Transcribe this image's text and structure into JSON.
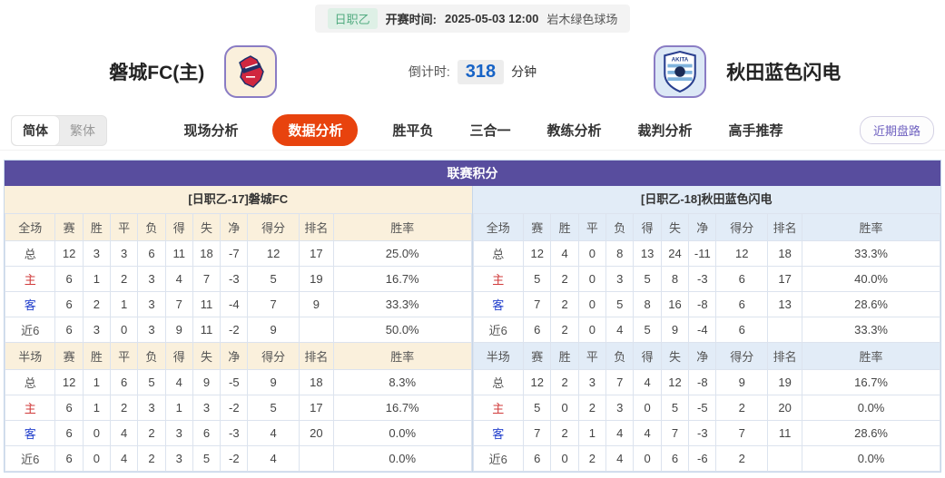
{
  "colors": {
    "purple_header": "#584d9e",
    "home_theme_bg": "#faf0dc",
    "away_theme_bg": "#e2ecf7",
    "active_tab": "#e8430e",
    "badge_bg": "#def0e6",
    "badge_text": "#52ab80",
    "countdown_blue": "#1763c6",
    "home_row_red": "#d03a3a",
    "away_row_blue": "#2340cc",
    "panel_border": "#c7d7ea",
    "cell_border": "#dce3ee",
    "logo_border": "#8a7cc4",
    "recent_button_text": "#6f61c0"
  },
  "top_bar": {
    "league_badge": "日职乙",
    "kickoff_label": "开赛时间:",
    "kickoff_time": "2025-05-03 12:00",
    "venue": "岩木绿色球场"
  },
  "match_header": {
    "home_team": "磐城FC(主)",
    "away_team": "秋田蓝色闪电",
    "home_logo_icon": "iwaki-fc-crest",
    "away_logo_icon": "blaublitz-akita-crest",
    "away_logo_text": "AKITA",
    "countdown_label": "倒计时:",
    "countdown_value": "318",
    "countdown_unit": "分钟"
  },
  "nav": {
    "lang": [
      {
        "id": "simplified",
        "label": "简体",
        "active": true
      },
      {
        "id": "traditional",
        "label": "繁体",
        "active": false
      }
    ],
    "tabs": [
      {
        "id": "live-analysis",
        "label": "现场分析",
        "active": false
      },
      {
        "id": "data-analysis",
        "label": "数据分析",
        "active": true
      },
      {
        "id": "win-draw-lose",
        "label": "胜平负",
        "active": false
      },
      {
        "id": "three-in-one",
        "label": "三合一",
        "active": false
      },
      {
        "id": "coach-analysis",
        "label": "教练分析",
        "active": false
      },
      {
        "id": "referee-analysis",
        "label": "裁判分析",
        "active": false
      },
      {
        "id": "expert-picks",
        "label": "高手推荐",
        "active": false
      }
    ],
    "recent_button": "近期盘路"
  },
  "panel": {
    "title": "联赛积分",
    "col_widths": [
      "10.8%",
      "5.9%",
      "5.9%",
      "5.9%",
      "5.9%",
      "5.9%",
      "5.9%",
      "5.9%",
      "11%",
      "7.4%",
      "29.5%"
    ],
    "tables": [
      {
        "team_title": "[日职乙-17]磐城FC",
        "theme": "cream",
        "sections": [
          {
            "header": [
              "全场",
              "赛",
              "胜",
              "平",
              "负",
              "得",
              "失",
              "净",
              "得分",
              "排名",
              "胜率"
            ],
            "rows": [
              {
                "label": "总",
                "type": "total",
                "cells": [
                  "12",
                  "3",
                  "3",
                  "6",
                  "11",
                  "18",
                  "-7",
                  "12",
                  "17",
                  "25.0%"
                ]
              },
              {
                "label": "主",
                "type": "home",
                "cells": [
                  "6",
                  "1",
                  "2",
                  "3",
                  "4",
                  "7",
                  "-3",
                  "5",
                  "19",
                  "16.7%"
                ]
              },
              {
                "label": "客",
                "type": "away",
                "cells": [
                  "6",
                  "2",
                  "1",
                  "3",
                  "7",
                  "11",
                  "-4",
                  "7",
                  "9",
                  "33.3%"
                ]
              },
              {
                "label": "近6",
                "type": "recent",
                "cells": [
                  "6",
                  "3",
                  "0",
                  "3",
                  "9",
                  "11",
                  "-2",
                  "9",
                  "",
                  "50.0%"
                ]
              }
            ]
          },
          {
            "header": [
              "半场",
              "赛",
              "胜",
              "平",
              "负",
              "得",
              "失",
              "净",
              "得分",
              "排名",
              "胜率"
            ],
            "rows": [
              {
                "label": "总",
                "type": "total",
                "cells": [
                  "12",
                  "1",
                  "6",
                  "5",
                  "4",
                  "9",
                  "-5",
                  "9",
                  "18",
                  "8.3%"
                ]
              },
              {
                "label": "主",
                "type": "home",
                "cells": [
                  "6",
                  "1",
                  "2",
                  "3",
                  "1",
                  "3",
                  "-2",
                  "5",
                  "17",
                  "16.7%"
                ]
              },
              {
                "label": "客",
                "type": "away",
                "cells": [
                  "6",
                  "0",
                  "4",
                  "2",
                  "3",
                  "6",
                  "-3",
                  "4",
                  "20",
                  "0.0%"
                ]
              },
              {
                "label": "近6",
                "type": "recent",
                "cells": [
                  "6",
                  "0",
                  "4",
                  "2",
                  "3",
                  "5",
                  "-2",
                  "4",
                  "",
                  "0.0%"
                ]
              }
            ]
          }
        ]
      },
      {
        "team_title": "[日职乙-18]秋田蓝色闪电",
        "theme": "blue",
        "sections": [
          {
            "header": [
              "全场",
              "赛",
              "胜",
              "平",
              "负",
              "得",
              "失",
              "净",
              "得分",
              "排名",
              "胜率"
            ],
            "rows": [
              {
                "label": "总",
                "type": "total",
                "cells": [
                  "12",
                  "4",
                  "0",
                  "8",
                  "13",
                  "24",
                  "-11",
                  "12",
                  "18",
                  "33.3%"
                ]
              },
              {
                "label": "主",
                "type": "home",
                "cells": [
                  "5",
                  "2",
                  "0",
                  "3",
                  "5",
                  "8",
                  "-3",
                  "6",
                  "17",
                  "40.0%"
                ]
              },
              {
                "label": "客",
                "type": "away",
                "cells": [
                  "7",
                  "2",
                  "0",
                  "5",
                  "8",
                  "16",
                  "-8",
                  "6",
                  "13",
                  "28.6%"
                ]
              },
              {
                "label": "近6",
                "type": "recent",
                "cells": [
                  "6",
                  "2",
                  "0",
                  "4",
                  "5",
                  "9",
                  "-4",
                  "6",
                  "",
                  "33.3%"
                ]
              }
            ]
          },
          {
            "header": [
              "半场",
              "赛",
              "胜",
              "平",
              "负",
              "得",
              "失",
              "净",
              "得分",
              "排名",
              "胜率"
            ],
            "rows": [
              {
                "label": "总",
                "type": "total",
                "cells": [
                  "12",
                  "2",
                  "3",
                  "7",
                  "4",
                  "12",
                  "-8",
                  "9",
                  "19",
                  "16.7%"
                ]
              },
              {
                "label": "主",
                "type": "home",
                "cells": [
                  "5",
                  "0",
                  "2",
                  "3",
                  "0",
                  "5",
                  "-5",
                  "2",
                  "20",
                  "0.0%"
                ]
              },
              {
                "label": "客",
                "type": "away",
                "cells": [
                  "7",
                  "2",
                  "1",
                  "4",
                  "4",
                  "7",
                  "-3",
                  "7",
                  "11",
                  "28.6%"
                ]
              },
              {
                "label": "近6",
                "type": "recent",
                "cells": [
                  "6",
                  "0",
                  "2",
                  "4",
                  "0",
                  "6",
                  "-6",
                  "2",
                  "",
                  "0.0%"
                ]
              }
            ]
          }
        ]
      }
    ]
  }
}
